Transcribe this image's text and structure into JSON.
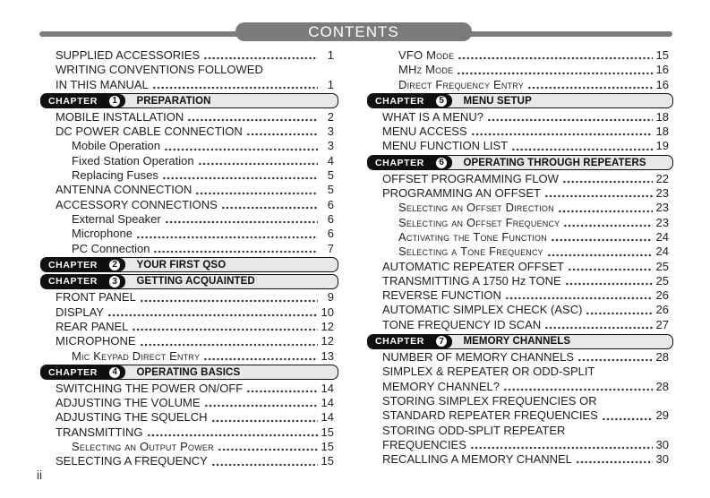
{
  "header": {
    "title": "CONTENTS"
  },
  "footer": {
    "page_label": "ii"
  },
  "left_column": [
    {
      "type": "entry",
      "level": 0,
      "text": "SUPPLIED ACCESSORIES",
      "page": "1"
    },
    {
      "type": "entry",
      "level": 0,
      "text": "WRITING CONVENTIONS FOLLOWED",
      "text2": "IN THIS MANUAL",
      "page": "1"
    },
    {
      "type": "chapter",
      "label": "CHAPTER",
      "number": "1",
      "title": "PREPARATION"
    },
    {
      "type": "entry",
      "level": 0,
      "text": "MOBILE INSTALLATION",
      "page": "2"
    },
    {
      "type": "entry",
      "level": 0,
      "text": "DC POWER CABLE CONNECTION",
      "page": "3"
    },
    {
      "type": "entry",
      "level": 1,
      "text": "Mobile Operation",
      "page": "3"
    },
    {
      "type": "entry",
      "level": 1,
      "text": "Fixed Station Operation",
      "page": "4"
    },
    {
      "type": "entry",
      "level": 1,
      "text": "Replacing Fuses",
      "page": "5"
    },
    {
      "type": "entry",
      "level": 0,
      "text": "ANTENNA CONNECTION",
      "page": "5"
    },
    {
      "type": "entry",
      "level": 0,
      "text": "ACCESSORY CONNECTIONS",
      "page": "6"
    },
    {
      "type": "entry",
      "level": 1,
      "text": "External Speaker",
      "page": "6"
    },
    {
      "type": "entry",
      "level": 1,
      "text": "Microphone",
      "page": "6"
    },
    {
      "type": "entry",
      "level": 1,
      "text": "PC Connection",
      "page": "7"
    },
    {
      "type": "chapter",
      "label": "CHAPTER",
      "number": "2",
      "title": "YOUR FIRST QSO"
    },
    {
      "type": "chapter",
      "label": "CHAPTER",
      "number": "3",
      "title": "GETTING ACQUAINTED"
    },
    {
      "type": "entry",
      "level": 0,
      "text": "FRONT PANEL",
      "page": "9"
    },
    {
      "type": "entry",
      "level": 0,
      "text": "DISPLAY",
      "page": "10"
    },
    {
      "type": "entry",
      "level": 0,
      "text": "REAR PANEL",
      "page": "12"
    },
    {
      "type": "entry",
      "level": 0,
      "text": "MICROPHONE",
      "page": "12"
    },
    {
      "type": "entry",
      "level": 1,
      "smallcaps": true,
      "text": "Mic Keypad Direct Entry",
      "page": "13"
    },
    {
      "type": "chapter",
      "label": "CHAPTER",
      "number": "4",
      "title": "OPERATING BASICS"
    },
    {
      "type": "entry",
      "level": 0,
      "text": "SWITCHING THE POWER ON/OFF",
      "page": "14"
    },
    {
      "type": "entry",
      "level": 0,
      "text": "ADJUSTING THE VOLUME",
      "page": "14"
    },
    {
      "type": "entry",
      "level": 0,
      "text": "ADJUSTING THE SQUELCH",
      "page": "14"
    },
    {
      "type": "entry",
      "level": 0,
      "text": "TRANSMITTING",
      "page": "15"
    },
    {
      "type": "entry",
      "level": 1,
      "smallcaps": true,
      "text": "Selecting an Output Power",
      "page": "15"
    },
    {
      "type": "entry",
      "level": 0,
      "text": "SELECTING A FREQUENCY",
      "page": "15"
    }
  ],
  "right_column": [
    {
      "type": "entry",
      "level": 1,
      "smallcaps": true,
      "text": "VFO Mode",
      "page": "15"
    },
    {
      "type": "entry",
      "level": 1,
      "smallcaps": true,
      "text": "MHz Mode",
      "page": "16"
    },
    {
      "type": "entry",
      "level": 1,
      "smallcaps": true,
      "text": "Direct Frequency Entry",
      "page": "16"
    },
    {
      "type": "chapter",
      "label": "CHAPTER",
      "number": "5",
      "title": "MENU SETUP"
    },
    {
      "type": "entry",
      "level": 0,
      "text": "WHAT IS A MENU?",
      "page": "18"
    },
    {
      "type": "entry",
      "level": 0,
      "text": "MENU ACCESS",
      "page": "18"
    },
    {
      "type": "entry",
      "level": 0,
      "text": "MENU FUNCTION LIST",
      "page": "19"
    },
    {
      "type": "chapter",
      "label": "CHAPTER",
      "number": "6",
      "title": "OPERATING THROUGH REPEATERS"
    },
    {
      "type": "entry",
      "level": 0,
      "text": "OFFSET PROGRAMMING FLOW",
      "page": "22"
    },
    {
      "type": "entry",
      "level": 0,
      "text": "PROGRAMMING AN OFFSET",
      "page": "23"
    },
    {
      "type": "entry",
      "level": 1,
      "smallcaps": true,
      "text": "Selecting an Offset Direction",
      "page": "23"
    },
    {
      "type": "entry",
      "level": 1,
      "smallcaps": true,
      "text": "Selecting an Offset Frequency",
      "page": "23"
    },
    {
      "type": "entry",
      "level": 1,
      "smallcaps": true,
      "text": "Activating the Tone Function",
      "page": "24"
    },
    {
      "type": "entry",
      "level": 1,
      "smallcaps": true,
      "text": "Selecting a Tone Frequency",
      "page": "24"
    },
    {
      "type": "entry",
      "level": 0,
      "text": "AUTOMATIC REPEATER OFFSET",
      "page": "25"
    },
    {
      "type": "entry",
      "level": 0,
      "text": "TRANSMITTING A 1750 Hz TONE",
      "page": "25"
    },
    {
      "type": "entry",
      "level": 0,
      "text": "REVERSE FUNCTION",
      "page": "26"
    },
    {
      "type": "entry",
      "level": 0,
      "text": "AUTOMATIC SIMPLEX CHECK (ASC)",
      "page": "26"
    },
    {
      "type": "entry",
      "level": 0,
      "text": "TONE FREQUENCY ID SCAN",
      "page": "27"
    },
    {
      "type": "chapter",
      "label": "CHAPTER",
      "number": "7",
      "title": "MEMORY CHANNELS"
    },
    {
      "type": "entry",
      "level": 0,
      "text": "NUMBER OF MEMORY CHANNELS",
      "page": "28"
    },
    {
      "type": "entry",
      "level": 0,
      "text": "SIMPLEX & REPEATER OR ODD-SPLIT",
      "text2": "MEMORY CHANNEL?",
      "page": "28"
    },
    {
      "type": "entry",
      "level": 0,
      "text": "STORING SIMPLEX FREQUENCIES OR",
      "text2": "STANDARD REPEATER FREQUENCIES",
      "page": "29"
    },
    {
      "type": "entry",
      "level": 0,
      "text": "STORING ODD-SPLIT REPEATER",
      "text2": "FREQUENCIES",
      "page": "30"
    },
    {
      "type": "entry",
      "level": 0,
      "text": "RECALLING A MEMORY CHANNEL",
      "page": "30"
    }
  ]
}
